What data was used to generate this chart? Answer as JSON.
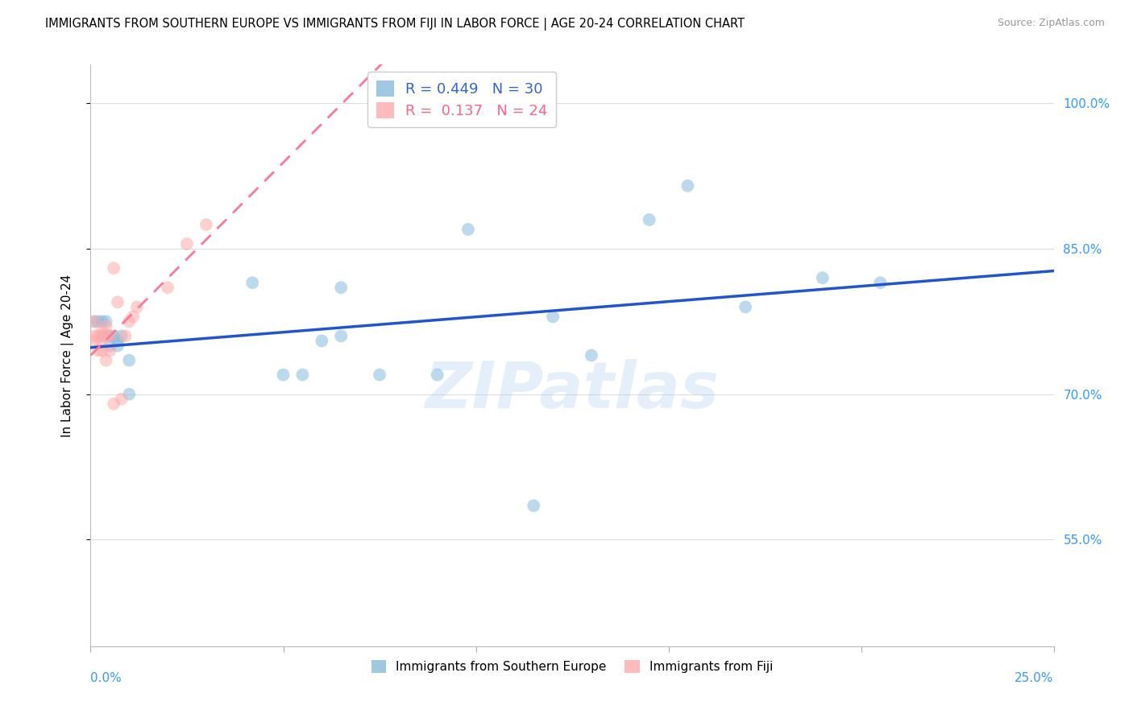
{
  "title": "IMMIGRANTS FROM SOUTHERN EUROPE VS IMMIGRANTS FROM FIJI IN LABOR FORCE | AGE 20-24 CORRELATION CHART",
  "source": "Source: ZipAtlas.com",
  "ylabel": "In Labor Force | Age 20-24",
  "yticks": [
    0.55,
    0.7,
    0.85,
    1.0
  ],
  "ytick_labels": [
    "55.0%",
    "70.0%",
    "85.0%",
    "100.0%"
  ],
  "xmin": 0.0,
  "xmax": 0.25,
  "ymin": 0.44,
  "ymax": 1.04,
  "legend_r1": "R = 0.449",
  "legend_n1": "N = 30",
  "legend_r2": "R =  0.137",
  "legend_n2": "N = 24",
  "blue_color": "#88BBDD",
  "pink_color": "#FFAAAA",
  "blue_line_color": "#2255CC",
  "pink_line_color": "#FF7799",
  "watermark_zip": "ZIP",
  "watermark_atlas": "atlas",
  "blue_x": [
    0.001,
    0.002,
    0.003,
    0.003,
    0.004,
    0.005,
    0.005,
    0.006,
    0.007,
    0.007,
    0.008,
    0.01,
    0.01,
    0.042,
    0.05,
    0.055,
    0.06,
    0.065,
    0.065,
    0.075,
    0.09,
    0.098,
    0.115,
    0.12,
    0.13,
    0.145,
    0.155,
    0.17,
    0.19,
    0.205
  ],
  "blue_y": [
    0.775,
    0.775,
    0.775,
    0.76,
    0.775,
    0.76,
    0.75,
    0.76,
    0.755,
    0.75,
    0.76,
    0.735,
    0.7,
    0.815,
    0.72,
    0.72,
    0.755,
    0.81,
    0.76,
    0.72,
    0.72,
    0.87,
    0.585,
    0.78,
    0.74,
    0.88,
    0.915,
    0.79,
    0.82,
    0.815
  ],
  "pink_x": [
    0.001,
    0.001,
    0.001,
    0.002,
    0.002,
    0.003,
    0.003,
    0.003,
    0.004,
    0.004,
    0.004,
    0.005,
    0.005,
    0.006,
    0.006,
    0.007,
    0.008,
    0.009,
    0.01,
    0.011,
    0.012,
    0.02,
    0.025,
    0.03
  ],
  "pink_y": [
    0.775,
    0.76,
    0.755,
    0.76,
    0.745,
    0.765,
    0.755,
    0.745,
    0.77,
    0.76,
    0.735,
    0.76,
    0.745,
    0.69,
    0.83,
    0.795,
    0.695,
    0.76,
    0.775,
    0.78,
    0.79,
    0.81,
    0.855,
    0.875
  ],
  "marker_size": 130,
  "marker_alpha": 0.55,
  "grid_color": "#DDDDDD",
  "xtick_positions": [
    0.0,
    0.05,
    0.1,
    0.15,
    0.2,
    0.25
  ]
}
